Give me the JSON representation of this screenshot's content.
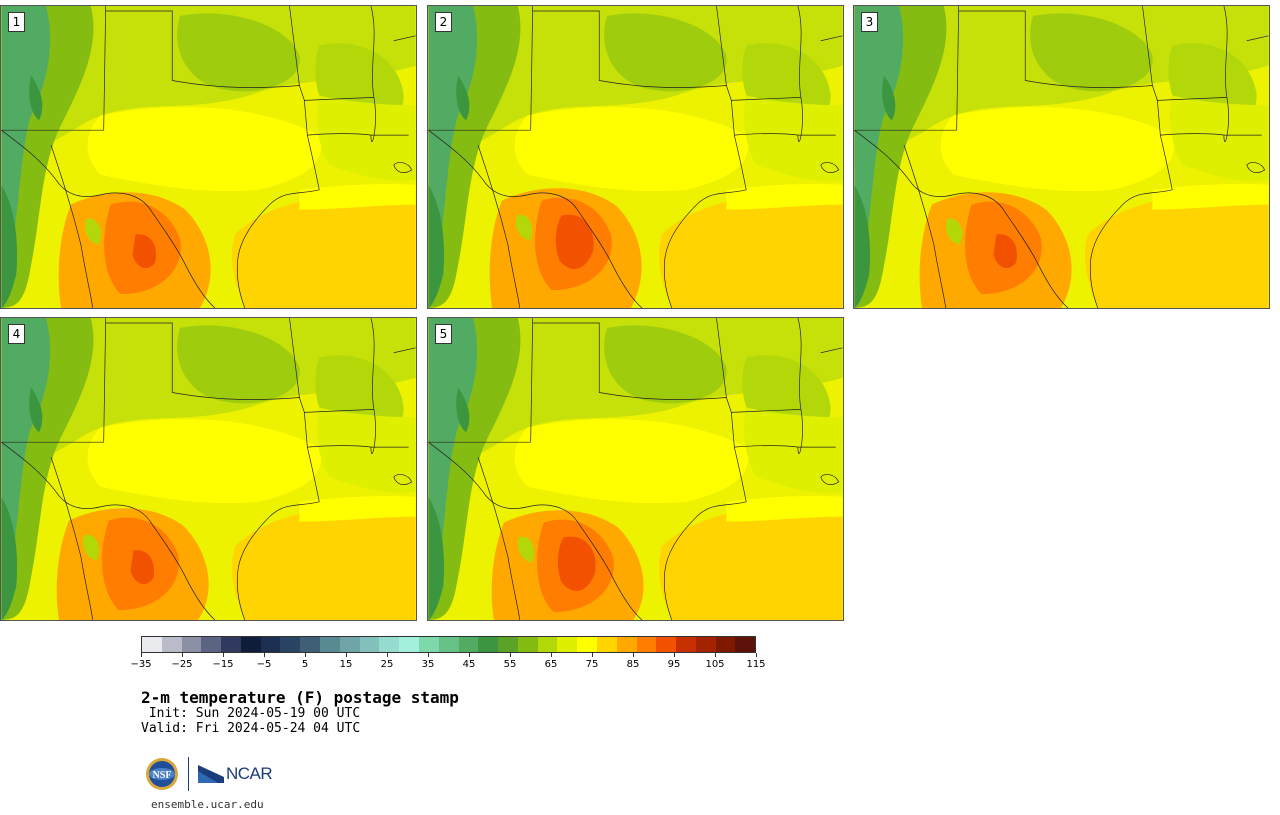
{
  "panels": [
    {
      "number": "1",
      "member": 1
    },
    {
      "number": "2",
      "member": 2
    },
    {
      "number": "3",
      "member": 3
    },
    {
      "number": "4",
      "member": 4
    },
    {
      "number": "5",
      "member": 5
    }
  ],
  "colorbar": {
    "colors": [
      "#e9ebef",
      "#b9bcc8",
      "#8c90a4",
      "#5d6481",
      "#2f3a5e",
      "#0f1c3a",
      "#1c2f52",
      "#2a4563",
      "#3e5f75",
      "#578a92",
      "#6fa5a8",
      "#83c0bc",
      "#95dccf",
      "#a3f0dc",
      "#7dd8aa",
      "#66c186",
      "#52ab62",
      "#3c9640",
      "#5aa326",
      "#84bc12",
      "#b3d80a",
      "#dfef00",
      "#ffff00",
      "#ffd400",
      "#ffa800",
      "#ff7d00",
      "#f25200",
      "#c83000",
      "#a32200",
      "#7e1900",
      "#5c1208"
    ],
    "tick_labels": [
      "−35",
      "−25",
      "−15",
      "−5",
      "5",
      "15",
      "25",
      "35",
      "45",
      "55",
      "65",
      "75",
      "85",
      "95",
      "105",
      "115"
    ]
  },
  "title": "2-m temperature (F) postage stamp",
  "init": " Init: Sun 2024-05-19 00 UTC",
  "valid": "Valid: Fri 2024-05-24 04 UTC",
  "logo": {
    "org1": "NSF",
    "org2": "NCAR"
  },
  "site": "ensemble.ucar.edu"
}
